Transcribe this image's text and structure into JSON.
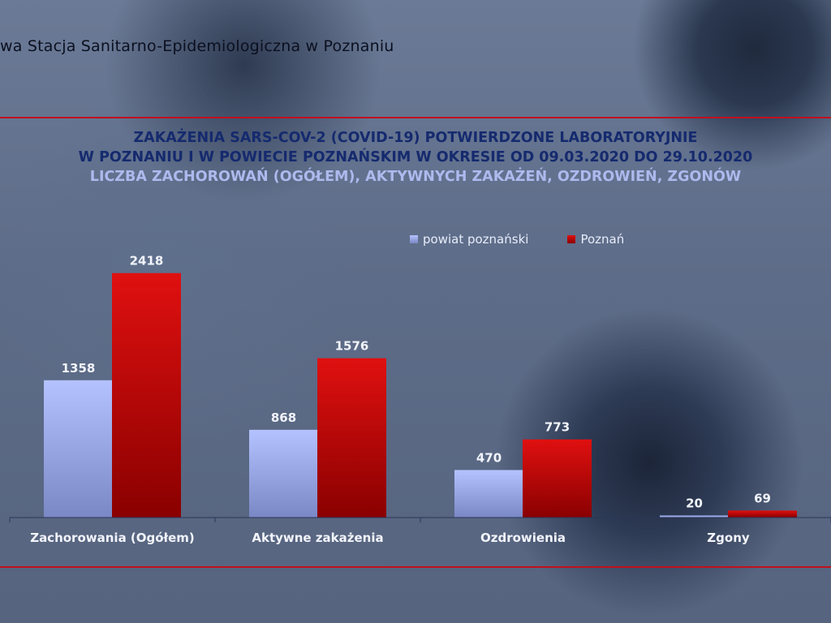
{
  "header": {
    "org": "wa Stacja Sanitarno-Epidemiologiczna w Poznaniu"
  },
  "colors": {
    "series1_top": "#b4c2ff",
    "series1_bottom": "#7a88c6",
    "series2_top": "#e01010",
    "series2_bottom": "#8a0000",
    "accent_rule": "#c01020"
  },
  "chart_data": {
    "type": "bar",
    "title_line1": "ZAKAŻENIA SARS-COV-2 (COVID-19) POTWIERDZONE LABORATORYJNIE",
    "title_line2": "W POZNANIU I W POWIECIE POZNAŃSKIM W OKRESIE OD 09.03.2020 DO 29.10.2020",
    "subtitle": "LICZBA ZACHOROWAŃ (OGÓŁEM), AKTYWNYCH ZAKAŻEŃ, OZDROWIEŃ, ZGONÓW",
    "categories": [
      "Zachorowania (Ogółem)",
      "Aktywne zakażenia",
      "Ozdrowienia",
      "Zgony"
    ],
    "series": [
      {
        "name": "powiat poznański",
        "values": [
          1358,
          868,
          470,
          20
        ]
      },
      {
        "name": "Poznań",
        "values": [
          2418,
          1576,
          773,
          69
        ]
      }
    ],
    "ylim": [
      0,
      2600
    ],
    "grid": false,
    "legend": "top-right"
  }
}
